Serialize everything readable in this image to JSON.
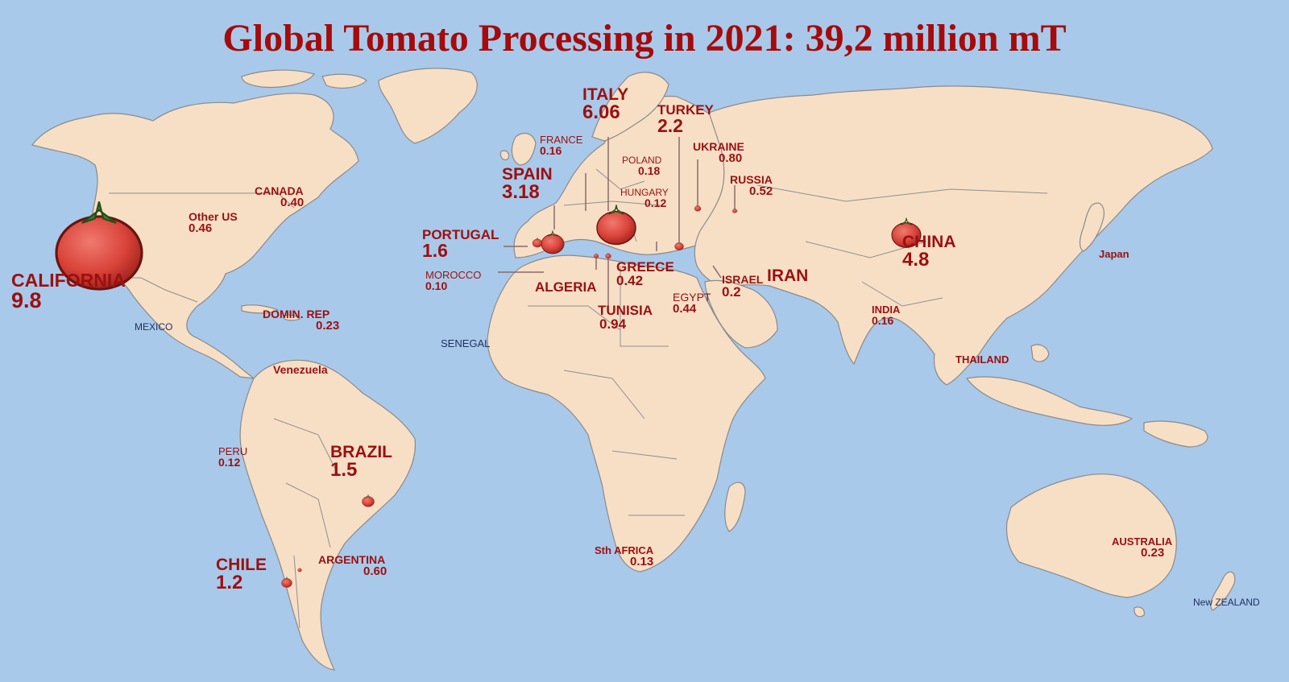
{
  "title": "Global Tomato Processing in 2021: 39,2 million mT",
  "regions": {
    "california": {
      "name": "CALIFORNIA",
      "value": "9.8"
    },
    "other_us": {
      "name": "Other US",
      "value": "0.46"
    },
    "canada": {
      "name": "CANADA",
      "value": "0.40"
    },
    "mexico": {
      "name": "MEXICO"
    },
    "domin_rep": {
      "name": "DOMIN. REP",
      "value": "0.23"
    },
    "venezuela": {
      "name": "Venezuela"
    },
    "peru": {
      "name": "PERU",
      "value": "0.12"
    },
    "brazil": {
      "name": "BRAZIL",
      "value": "1.5"
    },
    "chile": {
      "name": "CHILE",
      "value": "1.2"
    },
    "argentina": {
      "name": "ARGENTINA",
      "value": "0.60"
    },
    "portugal": {
      "name": "PORTUGAL",
      "value": "1.6"
    },
    "spain": {
      "name": "SPAIN",
      "value": "3.18"
    },
    "france": {
      "name": "FRANCE",
      "value": "0.16"
    },
    "italy": {
      "name": "ITALY",
      "value": "6.06"
    },
    "turkey": {
      "name": "TURKEY",
      "value": "2.2"
    },
    "poland": {
      "name": "POLAND",
      "value": "0.18"
    },
    "hungary": {
      "name": "HUNGARY",
      "value": "0.12"
    },
    "ukraine": {
      "name": "UKRAINE",
      "value": "0.80"
    },
    "russia": {
      "name": "RUSSIA",
      "value": "0.52"
    },
    "morocco": {
      "name": "MOROCCO",
      "value": "0.10"
    },
    "algeria": {
      "name": "ALGERIA"
    },
    "greece": {
      "name": "GREECE",
      "value": "0.42"
    },
    "tunisia": {
      "name": "TUNISIA",
      "value": "0.94"
    },
    "egypt": {
      "name": "EGYPT",
      "value": "0.44"
    },
    "israel": {
      "name": "ISRAEL",
      "value": "0.2"
    },
    "iran": {
      "name": "IRAN"
    },
    "senegal": {
      "name": "SENEGAL"
    },
    "south_africa": {
      "name": "Sth AFRICA",
      "value": "0.13"
    },
    "china": {
      "name": "CHINA",
      "value": "4.8"
    },
    "japan": {
      "name": "Japan"
    },
    "india": {
      "name": "INDIA",
      "value": "0.16"
    },
    "thailand": {
      "name": "THAILAND"
    },
    "australia": {
      "name": "AUSTRALIA",
      "value": "0.23"
    },
    "new_zealand": {
      "name": "New ZEALAND"
    }
  },
  "colors": {
    "ocean": "#a9c9ea",
    "land": "#f7dfc6",
    "label": "#9b1010",
    "title": "#a50b0b",
    "tomato": "#d9433a"
  }
}
